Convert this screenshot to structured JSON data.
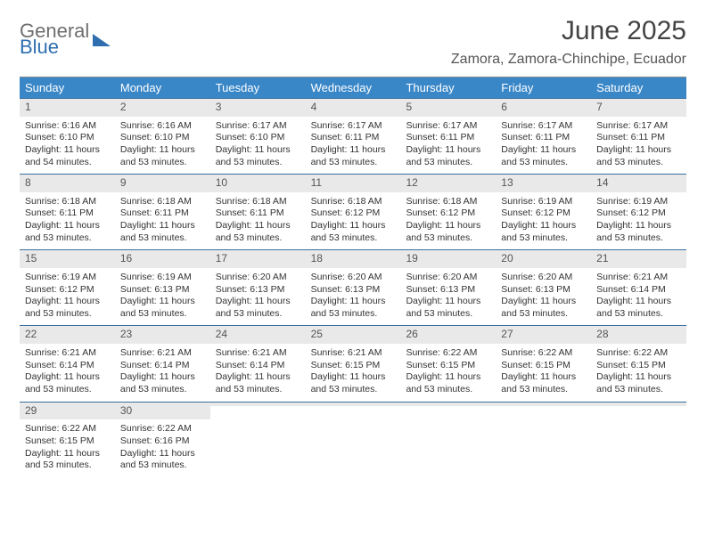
{
  "logo": {
    "line1": "General",
    "line2": "Blue"
  },
  "title": "June 2025",
  "location": "Zamora, Zamora-Chinchipe, Ecuador",
  "colors": {
    "header_bg": "#3a87c8",
    "header_text": "#ffffff",
    "week_border": "#3a6fa0",
    "daynum_bg": "#e9e9e9",
    "text": "#333333"
  },
  "daysOfWeek": [
    "Sunday",
    "Monday",
    "Tuesday",
    "Wednesday",
    "Thursday",
    "Friday",
    "Saturday"
  ],
  "weeks": [
    [
      {
        "n": "1",
        "sr": "Sunrise: 6:16 AM",
        "ss": "Sunset: 6:10 PM",
        "d1": "Daylight: 11 hours",
        "d2": "and 54 minutes."
      },
      {
        "n": "2",
        "sr": "Sunrise: 6:16 AM",
        "ss": "Sunset: 6:10 PM",
        "d1": "Daylight: 11 hours",
        "d2": "and 53 minutes."
      },
      {
        "n": "3",
        "sr": "Sunrise: 6:17 AM",
        "ss": "Sunset: 6:10 PM",
        "d1": "Daylight: 11 hours",
        "d2": "and 53 minutes."
      },
      {
        "n": "4",
        "sr": "Sunrise: 6:17 AM",
        "ss": "Sunset: 6:11 PM",
        "d1": "Daylight: 11 hours",
        "d2": "and 53 minutes."
      },
      {
        "n": "5",
        "sr": "Sunrise: 6:17 AM",
        "ss": "Sunset: 6:11 PM",
        "d1": "Daylight: 11 hours",
        "d2": "and 53 minutes."
      },
      {
        "n": "6",
        "sr": "Sunrise: 6:17 AM",
        "ss": "Sunset: 6:11 PM",
        "d1": "Daylight: 11 hours",
        "d2": "and 53 minutes."
      },
      {
        "n": "7",
        "sr": "Sunrise: 6:17 AM",
        "ss": "Sunset: 6:11 PM",
        "d1": "Daylight: 11 hours",
        "d2": "and 53 minutes."
      }
    ],
    [
      {
        "n": "8",
        "sr": "Sunrise: 6:18 AM",
        "ss": "Sunset: 6:11 PM",
        "d1": "Daylight: 11 hours",
        "d2": "and 53 minutes."
      },
      {
        "n": "9",
        "sr": "Sunrise: 6:18 AM",
        "ss": "Sunset: 6:11 PM",
        "d1": "Daylight: 11 hours",
        "d2": "and 53 minutes."
      },
      {
        "n": "10",
        "sr": "Sunrise: 6:18 AM",
        "ss": "Sunset: 6:11 PM",
        "d1": "Daylight: 11 hours",
        "d2": "and 53 minutes."
      },
      {
        "n": "11",
        "sr": "Sunrise: 6:18 AM",
        "ss": "Sunset: 6:12 PM",
        "d1": "Daylight: 11 hours",
        "d2": "and 53 minutes."
      },
      {
        "n": "12",
        "sr": "Sunrise: 6:18 AM",
        "ss": "Sunset: 6:12 PM",
        "d1": "Daylight: 11 hours",
        "d2": "and 53 minutes."
      },
      {
        "n": "13",
        "sr": "Sunrise: 6:19 AM",
        "ss": "Sunset: 6:12 PM",
        "d1": "Daylight: 11 hours",
        "d2": "and 53 minutes."
      },
      {
        "n": "14",
        "sr": "Sunrise: 6:19 AM",
        "ss": "Sunset: 6:12 PM",
        "d1": "Daylight: 11 hours",
        "d2": "and 53 minutes."
      }
    ],
    [
      {
        "n": "15",
        "sr": "Sunrise: 6:19 AM",
        "ss": "Sunset: 6:12 PM",
        "d1": "Daylight: 11 hours",
        "d2": "and 53 minutes."
      },
      {
        "n": "16",
        "sr": "Sunrise: 6:19 AM",
        "ss": "Sunset: 6:13 PM",
        "d1": "Daylight: 11 hours",
        "d2": "and 53 minutes."
      },
      {
        "n": "17",
        "sr": "Sunrise: 6:20 AM",
        "ss": "Sunset: 6:13 PM",
        "d1": "Daylight: 11 hours",
        "d2": "and 53 minutes."
      },
      {
        "n": "18",
        "sr": "Sunrise: 6:20 AM",
        "ss": "Sunset: 6:13 PM",
        "d1": "Daylight: 11 hours",
        "d2": "and 53 minutes."
      },
      {
        "n": "19",
        "sr": "Sunrise: 6:20 AM",
        "ss": "Sunset: 6:13 PM",
        "d1": "Daylight: 11 hours",
        "d2": "and 53 minutes."
      },
      {
        "n": "20",
        "sr": "Sunrise: 6:20 AM",
        "ss": "Sunset: 6:13 PM",
        "d1": "Daylight: 11 hours",
        "d2": "and 53 minutes."
      },
      {
        "n": "21",
        "sr": "Sunrise: 6:21 AM",
        "ss": "Sunset: 6:14 PM",
        "d1": "Daylight: 11 hours",
        "d2": "and 53 minutes."
      }
    ],
    [
      {
        "n": "22",
        "sr": "Sunrise: 6:21 AM",
        "ss": "Sunset: 6:14 PM",
        "d1": "Daylight: 11 hours",
        "d2": "and 53 minutes."
      },
      {
        "n": "23",
        "sr": "Sunrise: 6:21 AM",
        "ss": "Sunset: 6:14 PM",
        "d1": "Daylight: 11 hours",
        "d2": "and 53 minutes."
      },
      {
        "n": "24",
        "sr": "Sunrise: 6:21 AM",
        "ss": "Sunset: 6:14 PM",
        "d1": "Daylight: 11 hours",
        "d2": "and 53 minutes."
      },
      {
        "n": "25",
        "sr": "Sunrise: 6:21 AM",
        "ss": "Sunset: 6:15 PM",
        "d1": "Daylight: 11 hours",
        "d2": "and 53 minutes."
      },
      {
        "n": "26",
        "sr": "Sunrise: 6:22 AM",
        "ss": "Sunset: 6:15 PM",
        "d1": "Daylight: 11 hours",
        "d2": "and 53 minutes."
      },
      {
        "n": "27",
        "sr": "Sunrise: 6:22 AM",
        "ss": "Sunset: 6:15 PM",
        "d1": "Daylight: 11 hours",
        "d2": "and 53 minutes."
      },
      {
        "n": "28",
        "sr": "Sunrise: 6:22 AM",
        "ss": "Sunset: 6:15 PM",
        "d1": "Daylight: 11 hours",
        "d2": "and 53 minutes."
      }
    ],
    [
      {
        "n": "29",
        "sr": "Sunrise: 6:22 AM",
        "ss": "Sunset: 6:15 PM",
        "d1": "Daylight: 11 hours",
        "d2": "and 53 minutes."
      },
      {
        "n": "30",
        "sr": "Sunrise: 6:22 AM",
        "ss": "Sunset: 6:16 PM",
        "d1": "Daylight: 11 hours",
        "d2": "and 53 minutes."
      },
      {
        "n": "",
        "sr": "",
        "ss": "",
        "d1": "",
        "d2": ""
      },
      {
        "n": "",
        "sr": "",
        "ss": "",
        "d1": "",
        "d2": ""
      },
      {
        "n": "",
        "sr": "",
        "ss": "",
        "d1": "",
        "d2": ""
      },
      {
        "n": "",
        "sr": "",
        "ss": "",
        "d1": "",
        "d2": ""
      },
      {
        "n": "",
        "sr": "",
        "ss": "",
        "d1": "",
        "d2": ""
      }
    ]
  ]
}
